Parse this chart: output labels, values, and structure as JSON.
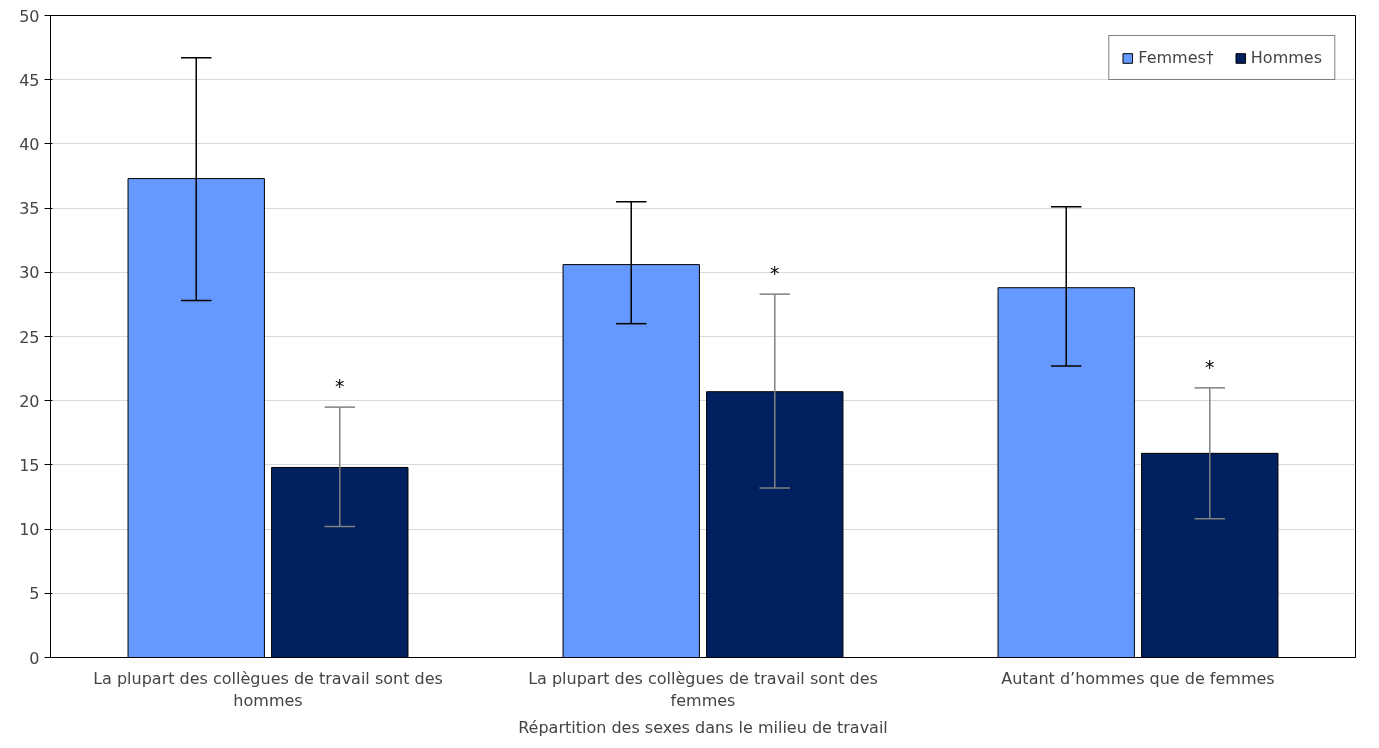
{
  "chart_data": {
    "type": "bar",
    "xlabel": "Répartition des sexes dans le milieu de travail",
    "categories": [
      "La plupart des collègues de travail sont des hommes",
      "La plupart des collègues de travail sont des femmes",
      "Autant d’hommes que de femmes"
    ],
    "series": [
      {
        "name": "Femmes†",
        "color": "#6699ff",
        "values": [
          37.3,
          30.6,
          28.8
        ],
        "errors": [
          [
            27.8,
            46.7
          ],
          [
            26.0,
            35.5
          ],
          [
            22.7,
            35.1
          ]
        ]
      },
      {
        "name": "Hommes",
        "color": "#002060",
        "values": [
          14.8,
          20.7,
          15.9
        ],
        "errors": [
          [
            10.2,
            19.5
          ],
          [
            13.2,
            28.3
          ],
          [
            10.8,
            21.0
          ]
        ]
      }
    ],
    "ylim": [
      0,
      50
    ],
    "yticks": [
      0,
      5,
      10,
      15,
      20,
      25,
      30,
      35,
      40,
      45,
      50
    ],
    "grid": "y",
    "legend": "top right",
    "annotations": [
      "*",
      "*",
      "*"
    ]
  }
}
